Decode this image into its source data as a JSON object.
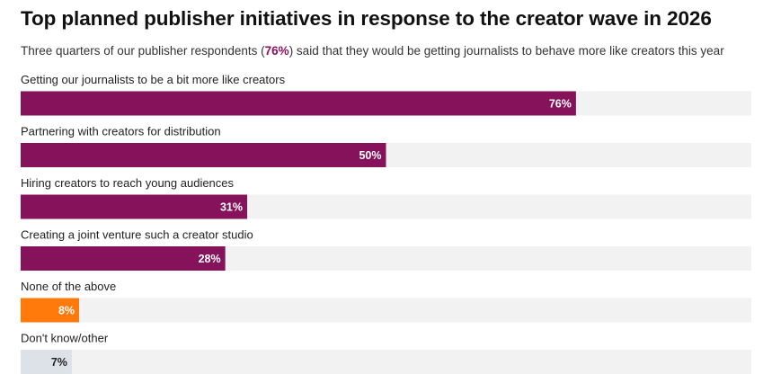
{
  "title": "Top planned publisher initiatives in response to the creator wave in 2026",
  "subtitle": {
    "before": "Three quarters of our publisher respondents (",
    "highlight": "76%",
    "after": ") said that they would be getting journalists to behave more like creators this year"
  },
  "colors": {
    "primary": "#85125a",
    "none": "#ff7a0a",
    "dontknow": "#dde1e8",
    "track": "#f2f2f2",
    "highlight": "#8a1060"
  },
  "chart_data": {
    "type": "bar",
    "orientation": "horizontal",
    "title": "Top planned publisher initiatives in response to the creator wave in 2026",
    "xlim": [
      0,
      100
    ],
    "categories": [
      "Getting our journalists to be a bit more like creators",
      "Partnering with creators for distribution",
      "Hiring creators to reach young audiences",
      "Creating a joint venture such a creator studio",
      "None of the above",
      "Don't know/other"
    ],
    "values": [
      76,
      50,
      31,
      28,
      8,
      7
    ],
    "value_labels": [
      "76%",
      "50%",
      "31%",
      "28%",
      "8%",
      "7%"
    ],
    "bar_colors": [
      "primary",
      "primary",
      "primary",
      "primary",
      "none",
      "dontknow"
    ]
  }
}
